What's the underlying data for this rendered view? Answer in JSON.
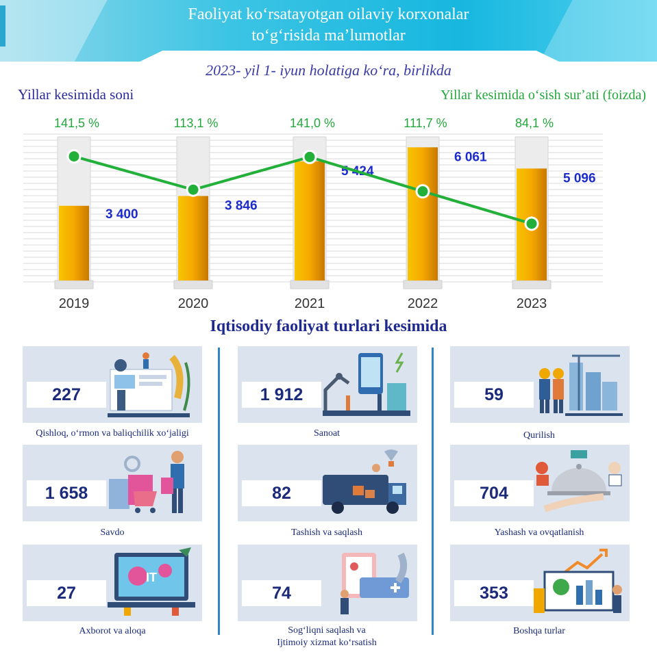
{
  "header": {
    "title": "Faoliyat koʻrsatayotgan oilaviy korxonalar\ntoʻgʻrisida maʼlumotlar",
    "subtitle": "2023- yil 1- iyun holatiga koʻra, birlikda"
  },
  "chart_data": {
    "type": "bar",
    "categories": [
      "2019",
      "2020",
      "2021",
      "2022",
      "2023"
    ],
    "series": [
      {
        "name": "Yillar kesimida soni",
        "kind": "bar",
        "values": [
          3400,
          3846,
          5424,
          6061,
          5096
        ],
        "labels": [
          "3 400",
          "3 846",
          "5 424",
          "6 061",
          "5 096"
        ],
        "color": "#f2a900"
      },
      {
        "name": "Yillar kesimida oʻsish surʼati (foizda)",
        "kind": "line",
        "values": [
          141.5,
          113.1,
          141.0,
          111.7,
          84.1
        ],
        "labels": [
          "141,5 %",
          "113,1 %",
          "141,0 %",
          "111,7 %",
          "84,1 %"
        ],
        "color": "#22b03a"
      }
    ],
    "ylim": [
      0,
      6600
    ],
    "grid": true,
    "label_left": "Yillar kesimida soni",
    "label_right": "Yillar kesimida oʻsish surʼati (foizda)"
  },
  "section_title": "Iqtisodiy faoliyat turlari kesimida",
  "sectors": [
    {
      "value": "227",
      "caption": "Qishloq, oʻrmon va baliqchilik xoʻjaligi",
      "icon": "agriculture-icon"
    },
    {
      "value": "1 912",
      "caption": "Sanoat",
      "icon": "industry-icon"
    },
    {
      "value": "59",
      "caption": "Qurilish",
      "icon": "construction-icon"
    },
    {
      "value": "1 658",
      "caption": "Savdo",
      "icon": "trade-icon"
    },
    {
      "value": "82",
      "caption": "Tashish va saqlash",
      "icon": "transport-icon"
    },
    {
      "value": "704",
      "caption": "Yashash va ovqatlanish",
      "icon": "hospitality-icon"
    },
    {
      "value": "27",
      "caption": "Axborot va aloqa",
      "icon": "it-icon"
    },
    {
      "value": "74",
      "caption": "Sogʻliqni saqlash va\nIjtimoiy xizmat koʻrsatish",
      "icon": "health-icon"
    },
    {
      "value": "353",
      "caption": "Boshqa turlar",
      "icon": "other-icon"
    }
  ]
}
